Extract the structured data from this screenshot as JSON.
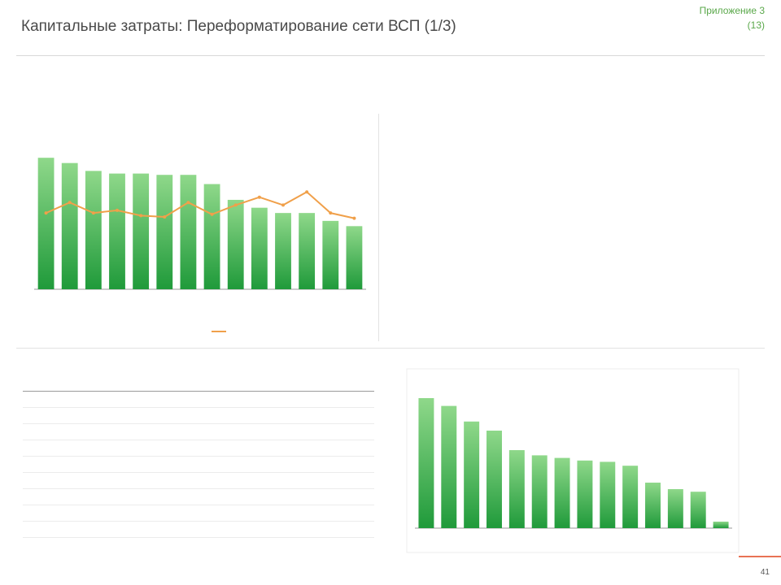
{
  "header": {
    "title": "Капитальные затраты: Переформатирование сети ВСП (1/3)",
    "subtitle": "",
    "appendix_line1": "Приложение 3",
    "appendix_line2": "(13)"
  },
  "intro": {
    "text_before": "",
    "highlight": "",
    "text_after": ""
  },
  "left_chart_title": "",
  "right_text": {
    "p1": "",
    "p2": "",
    "p3": ""
  },
  "table_title": "",
  "table": {
    "headers": [
      "",
      "",
      "",
      ""
    ],
    "rows": [
      {
        "label": "",
        "plan": "",
        "fact": "",
        "pct": "",
        "bold": true,
        "indent": false
      },
      {
        "label": "",
        "plan": "",
        "fact": "",
        "pct": "",
        "bold": true,
        "indent": false
      },
      {
        "label": "",
        "plan": "",
        "fact": "",
        "pct": "",
        "bold": false,
        "indent": true
      },
      {
        "label": "",
        "plan": "",
        "fact": "",
        "pct": "",
        "bold": false,
        "indent": true
      },
      {
        "label": "",
        "plan": "",
        "fact": "",
        "pct": "",
        "bold": true,
        "indent": false
      },
      {
        "label": "",
        "plan": "",
        "fact": "",
        "pct": "",
        "bold": false,
        "indent": true
      },
      {
        "label": "",
        "plan": "",
        "fact": "",
        "pct": "",
        "bold": false,
        "indent": true
      },
      {
        "label": "",
        "plan": "",
        "fact": "",
        "pct": "",
        "bold": false,
        "indent": true
      },
      {
        "label": "",
        "plan": "",
        "fact": "",
        "pct": "",
        "bold": true,
        "indent": false
      }
    ]
  },
  "right_chart_title": "",
  "page_number": "41",
  "footer_text": "",
  "colors": {
    "green_dark": "#1f9a3a",
    "green_light": "#8fd88a",
    "orange": "#f0a04a",
    "title_green": "#3f9a3f"
  },
  "chart_data": [
    {
      "type": "bar",
      "title": "",
      "categories": [
        "",
        "",
        "",
        "",
        "",
        "",
        "",
        "",
        "",
        "",
        "",
        "",
        "",
        ""
      ],
      "values": [
        100,
        96,
        90,
        88,
        88,
        87,
        87,
        80,
        68,
        62,
        58,
        58,
        52,
        48
      ],
      "data_labels": [
        "",
        "",
        "",
        "",
        "",
        "",
        "",
        "",
        "",
        "",
        "",
        "",
        "",
        ""
      ],
      "ylim": [
        0,
        110
      ],
      "overlay_series": [
        {
          "name": "",
          "type": "line",
          "color": "#f0a04a",
          "values": [
            58,
            66,
            58,
            60,
            56,
            55,
            66,
            57,
            64,
            70,
            64,
            74,
            58,
            54
          ],
          "data_labels": [
            "",
            "",
            "",
            "",
            "",
            "",
            "",
            "",
            "",
            "",
            "",
            "",
            "",
            ""
          ]
        }
      ],
      "annotation": "",
      "footnote": "",
      "legend": "bottom"
    },
    {
      "type": "bar",
      "title": "",
      "categories": [
        "",
        "",
        "",
        "",
        "",
        "",
        "",
        "",
        "",
        "",
        "",
        "",
        "",
        ""
      ],
      "values": [
        100,
        94,
        82,
        75,
        60,
        56,
        54,
        52,
        51,
        48,
        35,
        30,
        28,
        5
      ],
      "data_labels": [
        "",
        "",
        "",
        "",
        "",
        "",
        "",
        "",
        "",
        "",
        "",
        "",
        "",
        ""
      ],
      "ylim": [
        0,
        110
      ]
    }
  ]
}
